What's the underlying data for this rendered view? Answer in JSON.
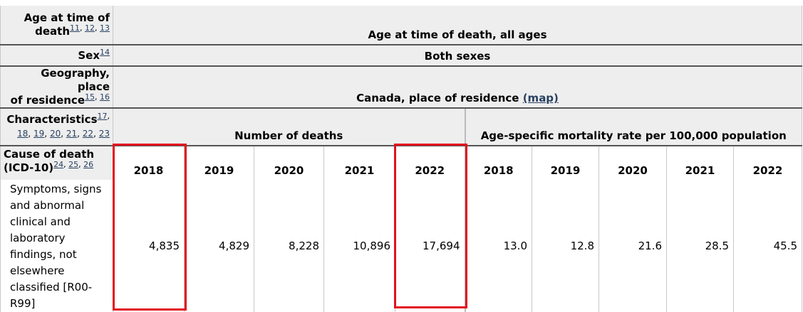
{
  "rows": {
    "age": {
      "label": "Age at time of death",
      "refs": [
        "11",
        "12",
        "13"
      ],
      "value": "Age at time of death, all ages"
    },
    "sex": {
      "label": "Sex",
      "refs": [
        "14"
      ],
      "value": "Both sexes"
    },
    "geography": {
      "label_line1": "Geography, place",
      "label_line2": "of residence",
      "refs": [
        "15",
        "16"
      ],
      "value": "Canada, place of residence",
      "map_link": "(map)"
    },
    "characteristics": {
      "label": "Characteristics",
      "refs_first": "17",
      "refs": [
        "18",
        "19",
        "20",
        "21",
        "22",
        "23"
      ],
      "groups": [
        "Number of deaths",
        "Age-specific mortality rate per 100,000 population"
      ]
    },
    "cause": {
      "label_line1": "Cause of death",
      "label_line2": "(ICD-10)",
      "refs": [
        "24",
        "25",
        "26"
      ],
      "years": [
        "2018",
        "2019",
        "2020",
        "2021",
        "2022",
        "2018",
        "2019",
        "2020",
        "2021",
        "2022"
      ]
    }
  },
  "data_row": {
    "cause": "Symptoms, signs and abnormal clinical and laboratory findings, not elsewhere classified [R00-R99]",
    "values": [
      "4,835",
      "4,829",
      "8,228",
      "10,896",
      "17,694",
      "13.0",
      "12.8",
      "21.6",
      "28.5",
      "45.5"
    ]
  },
  "highlight_color": "#e3101e"
}
